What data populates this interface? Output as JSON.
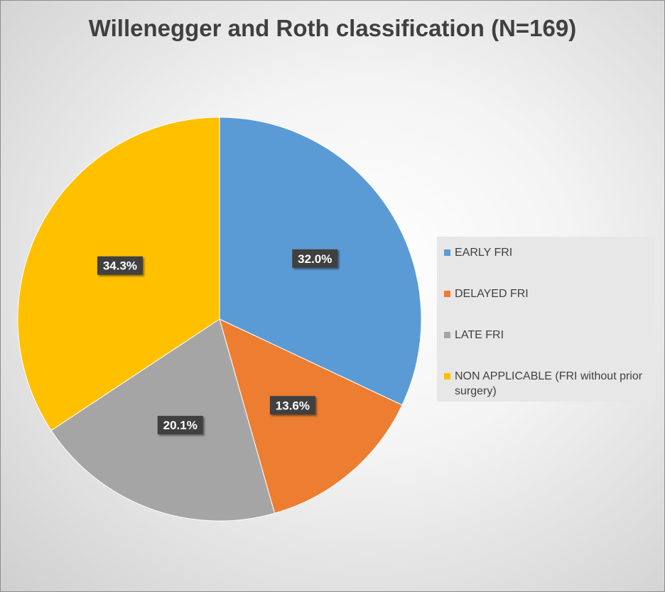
{
  "chart_data": {
    "type": "pie",
    "title": "Willenegger and Roth classification (N=169)",
    "categories": [
      "EARLY FRI",
      "DELAYED FRI",
      "LATE FRI",
      "NON APPLICABLE (FRI without prior surgery)"
    ],
    "values": [
      32.0,
      13.6,
      20.1,
      34.3
    ],
    "data_labels": [
      "32.0%",
      "13.6%",
      "20.1%",
      "34.3%"
    ],
    "colors": [
      "#5b9bd5",
      "#ed7d31",
      "#a5a5a5",
      "#ffc000"
    ],
    "legend_position": "right"
  }
}
